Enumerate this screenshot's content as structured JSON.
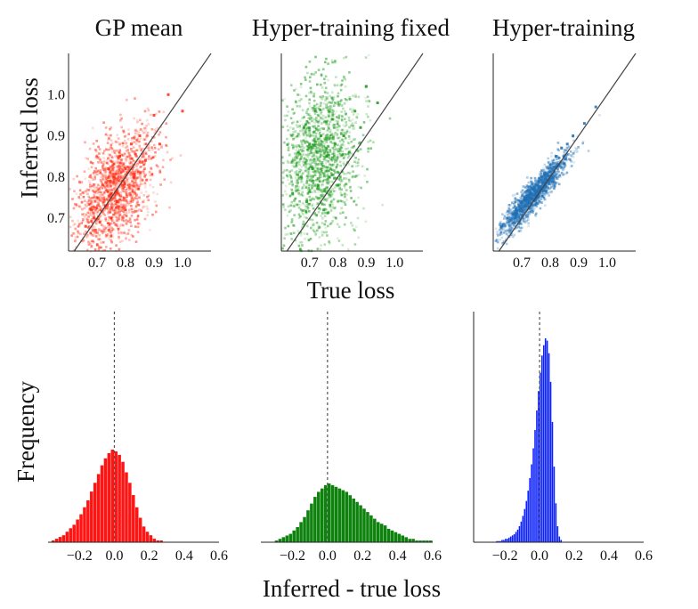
{
  "figure": {
    "shared_xlabel_top": "True loss",
    "shared_ylabel_top": "Inferred loss",
    "shared_xlabel_bottom": "Inferred - true loss",
    "shared_ylabel_bottom": "Frequency"
  },
  "chart_data": [
    {
      "type": "scatter",
      "title": "GP mean",
      "color": "#ff2a10",
      "xlim": [
        0.6,
        1.1
      ],
      "ylim": [
        0.62,
        1.1
      ],
      "xticks": [
        "0.7",
        "0.8",
        "0.9",
        "1.0"
      ],
      "yticks": [
        "0.7",
        "0.8",
        "0.9",
        "1.0"
      ],
      "reference_line": "y = x",
      "cloud": {
        "center": [
          0.76,
          0.77
        ],
        "spread": [
          0.07,
          0.075
        ],
        "corr": 0.45
      },
      "points": [
        [
          0.66,
          0.68
        ],
        [
          0.68,
          0.72
        ],
        [
          0.69,
          0.7
        ],
        [
          0.7,
          0.75
        ],
        [
          0.71,
          0.69
        ],
        [
          0.72,
          0.78
        ],
        [
          0.73,
          0.73
        ],
        [
          0.74,
          0.82
        ],
        [
          0.75,
          0.76
        ],
        [
          0.75,
          0.7
        ],
        [
          0.76,
          0.8
        ],
        [
          0.77,
          0.74
        ],
        [
          0.78,
          0.85
        ],
        [
          0.79,
          0.78
        ],
        [
          0.8,
          0.82
        ],
        [
          0.8,
          0.72
        ],
        [
          0.82,
          0.88
        ],
        [
          0.83,
          0.8
        ],
        [
          0.85,
          0.9
        ],
        [
          0.87,
          0.84
        ],
        [
          0.9,
          0.95
        ],
        [
          0.92,
          0.88
        ],
        [
          0.95,
          1.0
        ],
        [
          1.0,
          0.96
        ]
      ]
    },
    {
      "type": "scatter",
      "title": "Hyper-training fixed",
      "color": "#1a9a1a",
      "xlim": [
        0.6,
        1.1
      ],
      "ylim": [
        0.62,
        1.1
      ],
      "xticks": [
        "0.7",
        "0.8",
        "0.9",
        "1.0"
      ],
      "yticks": [],
      "reference_line": "y = x",
      "cloud": {
        "center": [
          0.73,
          0.84
        ],
        "spread": [
          0.07,
          0.1
        ],
        "corr": 0.2
      },
      "points": [
        [
          0.64,
          0.76
        ],
        [
          0.66,
          0.86
        ],
        [
          0.67,
          0.8
        ],
        [
          0.68,
          0.92
        ],
        [
          0.69,
          0.74
        ],
        [
          0.7,
          0.88
        ],
        [
          0.71,
          0.82
        ],
        [
          0.72,
          0.96
        ],
        [
          0.73,
          0.78
        ],
        [
          0.74,
          0.9
        ],
        [
          0.75,
          0.72
        ],
        [
          0.76,
          0.85
        ],
        [
          0.77,
          0.8
        ],
        [
          0.78,
          0.94
        ],
        [
          0.79,
          0.88
        ],
        [
          0.8,
          0.78
        ],
        [
          0.82,
          0.9
        ],
        [
          0.84,
          0.86
        ],
        [
          0.86,
          0.96
        ],
        [
          0.88,
          0.92
        ],
        [
          0.9,
          1.02
        ],
        [
          0.94,
          0.98
        ]
      ]
    },
    {
      "type": "scatter",
      "title": "Hyper-training",
      "color": "#1f6fb4",
      "xlim": [
        0.6,
        1.1
      ],
      "ylim": [
        0.62,
        1.1
      ],
      "xticks": [
        "0.7",
        "0.8",
        "0.9",
        "1.0"
      ],
      "yticks": [],
      "reference_line": "y = x",
      "cloud": {
        "center": [
          0.74,
          0.76
        ],
        "spread": [
          0.06,
          0.05
        ],
        "corr": 0.93
      },
      "points": [
        [
          0.63,
          0.68
        ],
        [
          0.65,
          0.7
        ],
        [
          0.67,
          0.71
        ],
        [
          0.68,
          0.72
        ],
        [
          0.69,
          0.73
        ],
        [
          0.7,
          0.74
        ],
        [
          0.71,
          0.75
        ],
        [
          0.72,
          0.755
        ],
        [
          0.73,
          0.76
        ],
        [
          0.74,
          0.77
        ],
        [
          0.75,
          0.78
        ],
        [
          0.76,
          0.79
        ],
        [
          0.77,
          0.8
        ],
        [
          0.78,
          0.81
        ],
        [
          0.8,
          0.83
        ],
        [
          0.82,
          0.85
        ],
        [
          0.84,
          0.87
        ],
        [
          0.86,
          0.88
        ],
        [
          0.88,
          0.9
        ],
        [
          0.92,
          0.93
        ],
        [
          0.96,
          0.97
        ]
      ]
    },
    {
      "type": "bar",
      "title": "",
      "color": "#ff1414",
      "xlim": [
        -0.38,
        0.6
      ],
      "xticks": [
        "−0.2",
        "0.0",
        "0.2",
        "0.4",
        "0.6"
      ],
      "reference_line": "x = 0",
      "bin_width": 0.02,
      "bins_start": -0.36,
      "counts": [
        1,
        2,
        3,
        4,
        6,
        8,
        10,
        13,
        16,
        20,
        24,
        29,
        34,
        39,
        44,
        48,
        51,
        53,
        52,
        50,
        46,
        40,
        34,
        27,
        20,
        14,
        9,
        6,
        4,
        2,
        1,
        1
      ]
    },
    {
      "type": "bar",
      "title": "",
      "color": "#0d820d",
      "xlim": [
        -0.38,
        0.6
      ],
      "xticks": [
        "−0.2",
        "0.0",
        "0.2",
        "0.4",
        "0.6"
      ],
      "reference_line": "x = 0",
      "bin_width": 0.02,
      "bins_start": -0.3,
      "counts": [
        1,
        2,
        3,
        4,
        5,
        7,
        9,
        12,
        15,
        19,
        23,
        27,
        30,
        32,
        34,
        35,
        34,
        33,
        32,
        31,
        30,
        28,
        26,
        24,
        22,
        20,
        18,
        16,
        14,
        12,
        11,
        10,
        8,
        7,
        6,
        5,
        4,
        3,
        2,
        2,
        1,
        1,
        1,
        1,
        1
      ]
    },
    {
      "type": "bar",
      "title": "",
      "color": "#0a20ff",
      "xlim": [
        -0.38,
        0.6
      ],
      "xticks": [
        "−0.2",
        "0.0",
        "0.2",
        "0.4",
        "0.6"
      ],
      "reference_line": "x = 0",
      "bin_width": 0.01,
      "bins_start": -0.25,
      "counts": [
        1,
        1,
        1,
        2,
        2,
        3,
        3,
        4,
        5,
        6,
        7,
        9,
        11,
        14,
        18,
        23,
        29,
        36,
        45,
        56,
        68,
        82,
        98,
        115,
        132,
        148,
        163,
        172,
        178,
        176,
        165,
        140,
        105,
        66,
        34,
        14,
        5,
        2
      ]
    }
  ]
}
